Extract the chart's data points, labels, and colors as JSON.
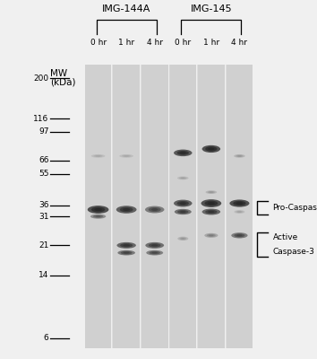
{
  "fig_bg": "#f0f0f0",
  "gel_bg": "#b8b8b8",
  "lane_bg": "#bcbcbc",
  "sep_color": "#d0d0d0",
  "title_group1": "IMG-144A",
  "title_group2": "IMG-145",
  "time_labels": [
    "0 hr",
    "1 hr",
    "4 hr",
    "0 hr",
    "1 hr",
    "4 hr"
  ],
  "mw_labels": [
    "200",
    "116",
    "97",
    "66",
    "55",
    "36",
    "31",
    "21",
    "14",
    "6"
  ],
  "mw_positions": [
    200,
    116,
    97,
    66,
    55,
    36,
    31,
    21,
    14,
    6
  ],
  "annotation1": "Pro-Caspase-3",
  "annotation2_line1": "Active",
  "annotation2_line2": "Caspase-3",
  "log_min": 0.72,
  "log_max": 2.38,
  "bands": [
    {
      "lane": 0,
      "mw": 34,
      "intensity": 0.88,
      "xw": 0.75,
      "yw": 0.028
    },
    {
      "lane": 0,
      "mw": 31,
      "intensity": 0.45,
      "xw": 0.55,
      "yw": 0.016
    },
    {
      "lane": 0,
      "mw": 70,
      "intensity": 0.12,
      "xw": 0.5,
      "yw": 0.012
    },
    {
      "lane": 1,
      "mw": 34,
      "intensity": 0.78,
      "xw": 0.72,
      "yw": 0.027
    },
    {
      "lane": 1,
      "mw": 70,
      "intensity": 0.12,
      "xw": 0.5,
      "yw": 0.012
    },
    {
      "lane": 1,
      "mw": 21,
      "intensity": 0.72,
      "xw": 0.68,
      "yw": 0.022
    },
    {
      "lane": 1,
      "mw": 19,
      "intensity": 0.6,
      "xw": 0.62,
      "yw": 0.018
    },
    {
      "lane": 2,
      "mw": 34,
      "intensity": 0.58,
      "xw": 0.68,
      "yw": 0.025
    },
    {
      "lane": 2,
      "mw": 21,
      "intensity": 0.67,
      "xw": 0.66,
      "yw": 0.022
    },
    {
      "lane": 2,
      "mw": 19,
      "intensity": 0.55,
      "xw": 0.6,
      "yw": 0.018
    },
    {
      "lane": 3,
      "mw": 73,
      "intensity": 0.82,
      "xw": 0.65,
      "yw": 0.024
    },
    {
      "lane": 3,
      "mw": 37,
      "intensity": 0.78,
      "xw": 0.65,
      "yw": 0.025
    },
    {
      "lane": 3,
      "mw": 33,
      "intensity": 0.65,
      "xw": 0.6,
      "yw": 0.02
    },
    {
      "lane": 3,
      "mw": 52,
      "intensity": 0.14,
      "xw": 0.4,
      "yw": 0.012
    },
    {
      "lane": 3,
      "mw": 23,
      "intensity": 0.18,
      "xw": 0.38,
      "yw": 0.014
    },
    {
      "lane": 4,
      "mw": 77,
      "intensity": 0.88,
      "xw": 0.65,
      "yw": 0.026
    },
    {
      "lane": 4,
      "mw": 37,
      "intensity": 0.88,
      "xw": 0.72,
      "yw": 0.028
    },
    {
      "lane": 4,
      "mw": 33,
      "intensity": 0.72,
      "xw": 0.65,
      "yw": 0.022
    },
    {
      "lane": 4,
      "mw": 43,
      "intensity": 0.18,
      "xw": 0.4,
      "yw": 0.012
    },
    {
      "lane": 4,
      "mw": 24,
      "intensity": 0.28,
      "xw": 0.48,
      "yw": 0.016
    },
    {
      "lane": 5,
      "mw": 70,
      "intensity": 0.18,
      "xw": 0.4,
      "yw": 0.012
    },
    {
      "lane": 5,
      "mw": 37,
      "intensity": 0.88,
      "xw": 0.7,
      "yw": 0.026
    },
    {
      "lane": 5,
      "mw": 33,
      "intensity": 0.14,
      "xw": 0.38,
      "yw": 0.012
    },
    {
      "lane": 5,
      "mw": 24,
      "intensity": 0.58,
      "xw": 0.58,
      "yw": 0.02
    }
  ]
}
